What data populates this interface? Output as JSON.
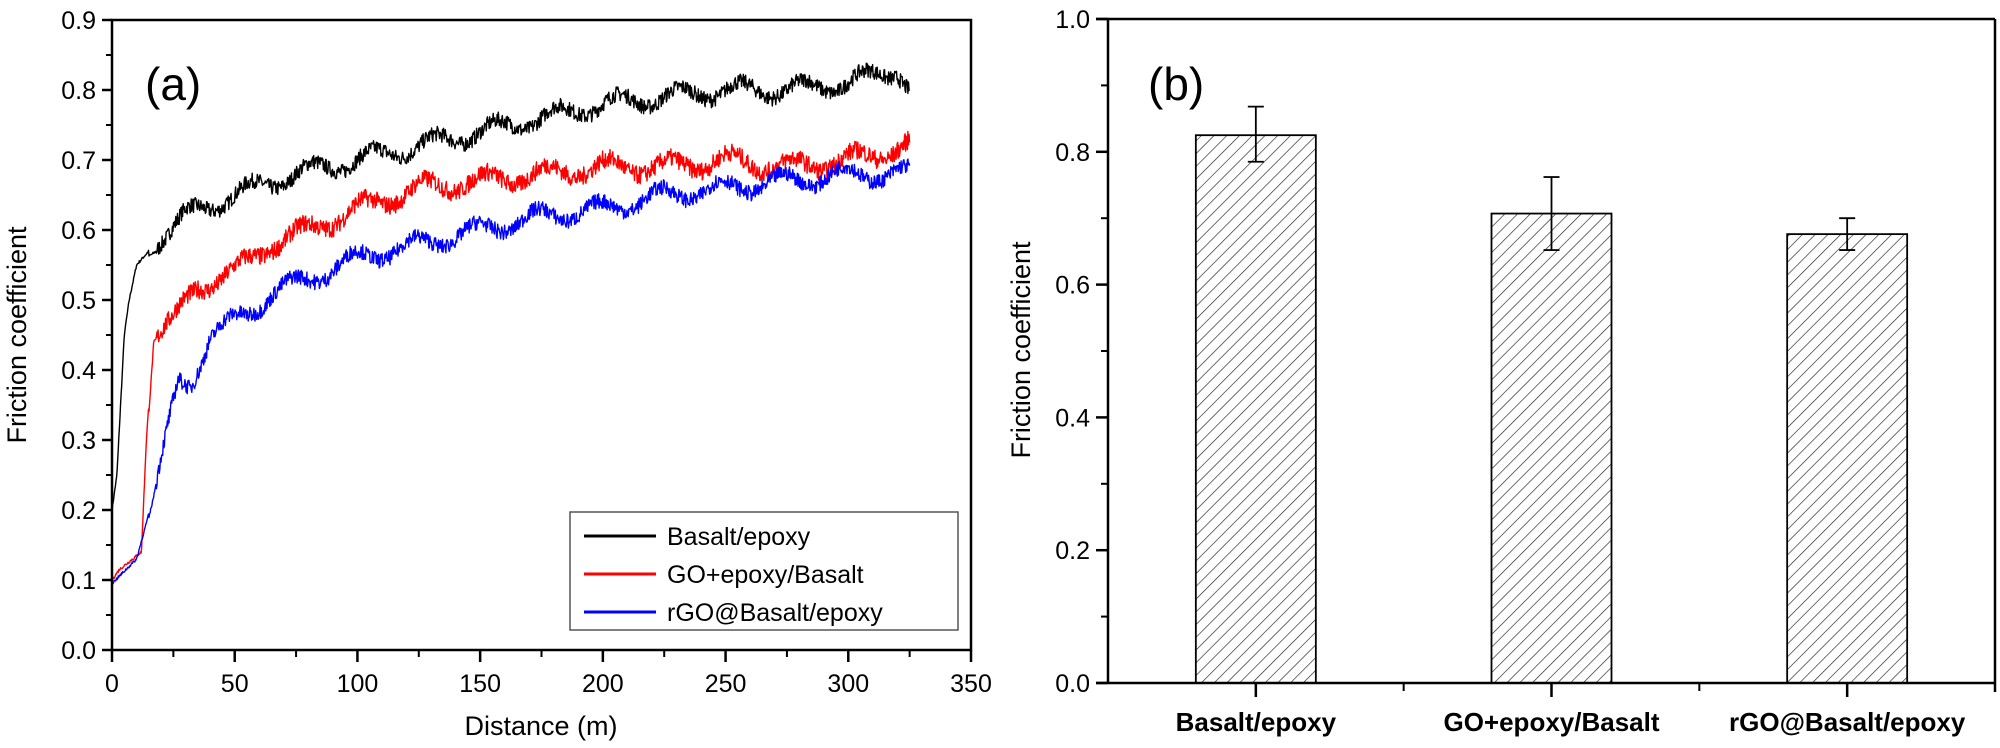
{
  "chart_data": [
    {
      "panel": "(a)",
      "type": "line",
      "title": "",
      "xlabel": "Distance (m)",
      "ylabel": "Friction coefficient",
      "xlim": [
        0,
        350
      ],
      "ylim": [
        0,
        0.9
      ],
      "xticks": [
        0,
        50,
        100,
        150,
        200,
        250,
        300,
        350
      ],
      "xtick_labels": [
        "0",
        "50",
        "100",
        "150",
        "200",
        "250",
        "300",
        "350"
      ],
      "yticks": [
        0.0,
        0.1,
        0.2,
        0.3,
        0.4,
        0.5,
        0.6,
        0.7,
        0.8,
        0.9
      ],
      "ytick_labels": [
        "0.0",
        "0.1",
        "0.2",
        "0.3",
        "0.4",
        "0.5",
        "0.6",
        "0.7",
        "0.8",
        "0.9"
      ],
      "grid": false,
      "legend": {
        "placement": "bottom-right"
      },
      "series": [
        {
          "name": "Basalt/epoxy",
          "color": "#000000",
          "x": [
            0,
            2,
            5,
            7,
            10,
            20,
            30,
            50,
            75,
            100,
            125,
            150,
            175,
            200,
            225,
            250,
            275,
            300,
            320,
            325
          ],
          "y": [
            0.2,
            0.25,
            0.45,
            0.5,
            0.55,
            0.59,
            0.62,
            0.65,
            0.68,
            0.7,
            0.72,
            0.74,
            0.76,
            0.78,
            0.79,
            0.8,
            0.8,
            0.81,
            0.83,
            0.8
          ]
        },
        {
          "name": "GO+epoxy/Basalt",
          "color": "#ff0000",
          "x": [
            0,
            3,
            12,
            14,
            17,
            25,
            35,
            50,
            65,
            80,
            100,
            125,
            150,
            175,
            200,
            225,
            250,
            275,
            300,
            325
          ],
          "y": [
            0.1,
            0.115,
            0.14,
            0.3,
            0.45,
            0.47,
            0.52,
            0.54,
            0.58,
            0.6,
            0.63,
            0.66,
            0.67,
            0.68,
            0.69,
            0.69,
            0.7,
            0.69,
            0.7,
            0.72
          ]
        },
        {
          "name": "rGO@Basalt/epoxy",
          "color": "#0000ff",
          "x": [
            0,
            10,
            17,
            22,
            27,
            32,
            40,
            55,
            65,
            80,
            100,
            125,
            150,
            175,
            200,
            225,
            250,
            275,
            300,
            325
          ],
          "y": [
            0.095,
            0.13,
            0.22,
            0.3,
            0.38,
            0.38,
            0.45,
            0.48,
            0.51,
            0.53,
            0.56,
            0.58,
            0.6,
            0.62,
            0.63,
            0.65,
            0.66,
            0.67,
            0.68,
            0.68
          ]
        }
      ]
    },
    {
      "panel": "(b)",
      "type": "bar",
      "title": "",
      "xlabel": "",
      "ylabel": "Friction coefficient",
      "ylim": [
        0,
        1.0
      ],
      "yticks": [
        0.0,
        0.2,
        0.4,
        0.6,
        0.8,
        1.0
      ],
      "ytick_labels": [
        "0.0",
        "0.2",
        "0.4",
        "0.6",
        "0.8",
        "1.0"
      ],
      "grid": false,
      "fill_pattern": "diagonal-hatch",
      "categories": [
        "Basalt/epoxy",
        "GO+epoxy/Basalt",
        "rGO@Basalt/epoxy"
      ],
      "values": [
        0.825,
        0.707,
        0.676
      ],
      "error_low": [
        0.785,
        0.652,
        0.652
      ],
      "error_high": [
        0.868,
        0.762,
        0.7
      ]
    }
  ]
}
